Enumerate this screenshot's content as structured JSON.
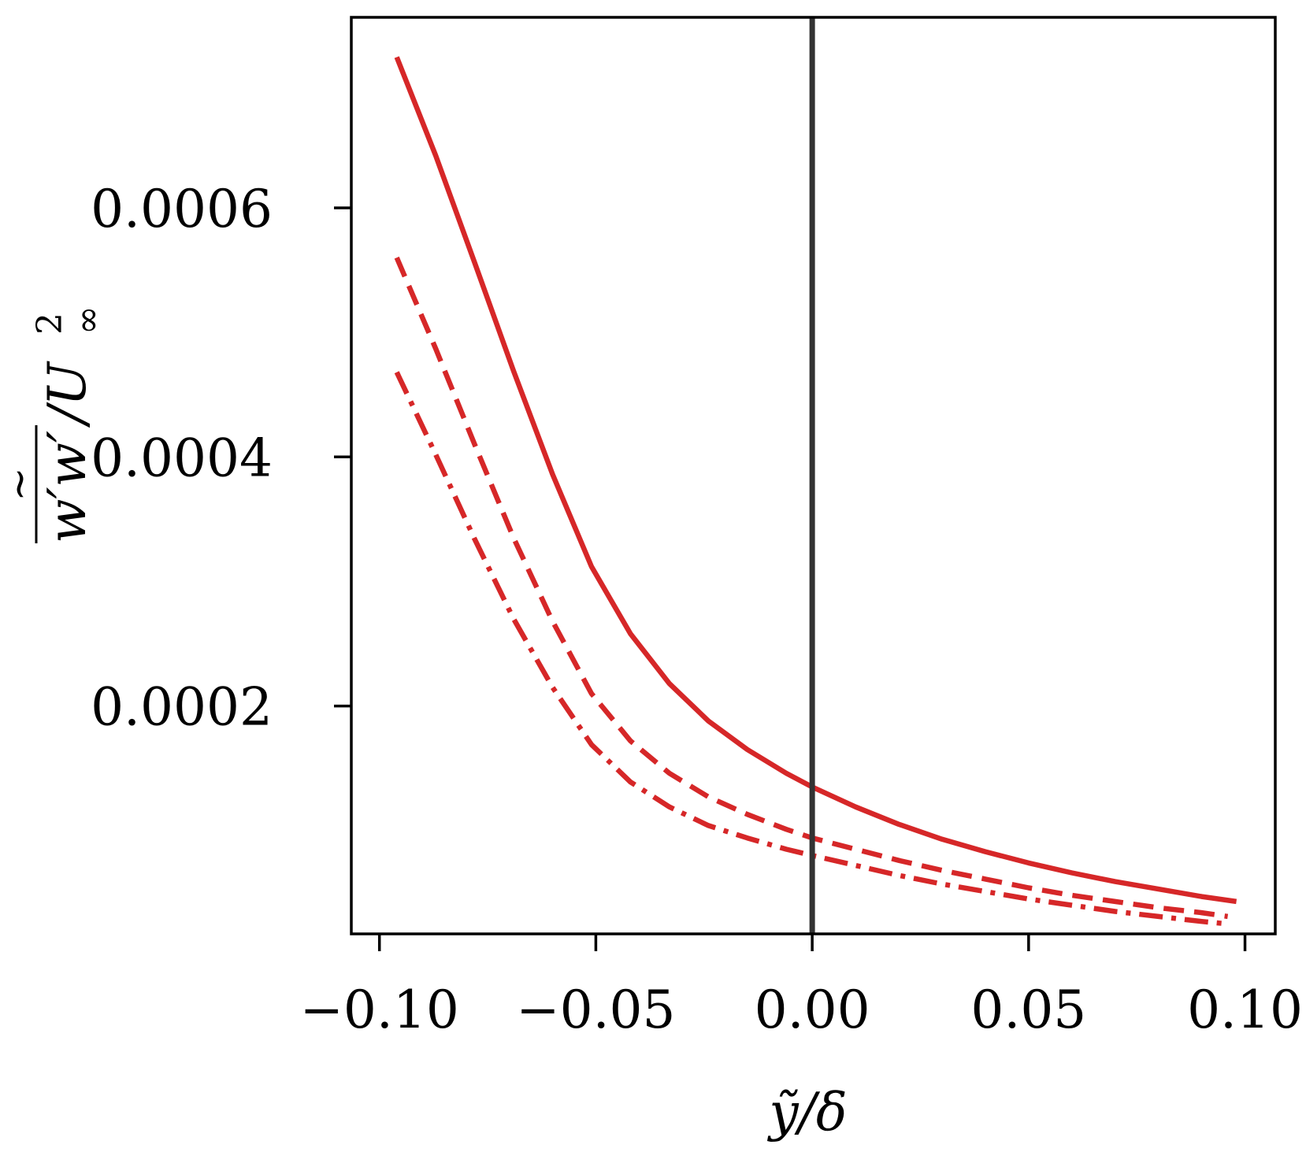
{
  "chart_data": {
    "type": "line",
    "title": "",
    "xlabel": "ỹ/δ",
    "ylabel": "w′w′/U∞²",
    "ylabel_parts": {
      "numerator": "w′w′",
      "slash": "/U",
      "superscript": "2",
      "subscript": "∞"
    },
    "xlim": [
      -0.1065,
      0.107
    ],
    "ylim": [
      1.7e-05,
      0.000753
    ],
    "xticks": [
      {
        "value": -0.1,
        "label": "−0.10"
      },
      {
        "value": -0.05,
        "label": "−0.05"
      },
      {
        "value": 0.0,
        "label": "0.00"
      },
      {
        "value": 0.05,
        "label": "0.05"
      },
      {
        "value": 0.1,
        "label": "0.10"
      }
    ],
    "yticks": [
      {
        "value": 0.0002,
        "label": "0.0002"
      },
      {
        "value": 0.0004,
        "label": "0.0004"
      },
      {
        "value": 0.0006,
        "label": "0.0006"
      }
    ],
    "grid": false,
    "vline": {
      "x": 0.0,
      "color": "#333333"
    },
    "series": [
      {
        "style": "solid",
        "color": "#d62728",
        "x": [
          -0.096,
          -0.087,
          -0.078,
          -0.069,
          -0.06,
          -0.051,
          -0.042,
          -0.033,
          -0.024,
          -0.015,
          -0.006,
          0.0,
          0.01,
          0.02,
          0.03,
          0.04,
          0.05,
          0.06,
          0.07,
          0.08,
          0.09,
          0.098
        ],
        "y": [
          0.000721,
          0.000642,
          0.000556,
          0.000469,
          0.000386,
          0.000312,
          0.000258,
          0.000218,
          0.000188,
          0.000165,
          0.000146,
          0.000135,
          0.000119,
          0.000105,
          9.3e-05,
          8.3e-05,
          7.4e-05,
          6.6e-05,
          5.9e-05,
          5.3e-05,
          4.7e-05,
          4.3e-05
        ]
      },
      {
        "style": "dashed",
        "color": "#d62728",
        "x": [
          -0.096,
          -0.087,
          -0.078,
          -0.069,
          -0.06,
          -0.051,
          -0.042,
          -0.033,
          -0.024,
          -0.015,
          -0.006,
          0.0,
          0.01,
          0.02,
          0.03,
          0.04,
          0.05,
          0.06,
          0.07,
          0.08,
          0.09,
          0.096
        ],
        "y": [
          0.00056,
          0.000487,
          0.00041,
          0.000335,
          0.000268,
          0.00021,
          0.000172,
          0.000146,
          0.000127,
          0.000113,
          0.000101,
          9.4e-05,
          8.5e-05,
          7.6e-05,
          6.8e-05,
          6.1e-05,
          5.4e-05,
          4.8e-05,
          4.3e-05,
          3.8e-05,
          3.4e-05,
          3.1e-05
        ]
      },
      {
        "style": "dashdot",
        "color": "#d62728",
        "x": [
          -0.096,
          -0.087,
          -0.078,
          -0.069,
          -0.06,
          -0.051,
          -0.042,
          -0.033,
          -0.024,
          -0.015,
          -0.006,
          0.0,
          0.01,
          0.02,
          0.03,
          0.04,
          0.05,
          0.06,
          0.07,
          0.08,
          0.09,
          0.096
        ],
        "y": [
          0.000468,
          0.000402,
          0.000334,
          0.00027,
          0.000215,
          0.000169,
          0.000139,
          0.000119,
          0.000104,
          9.4e-05,
          8.5e-05,
          8e-05,
          7.2e-05,
          6.4e-05,
          5.7e-05,
          5.1e-05,
          4.5e-05,
          4e-05,
          3.5e-05,
          3.1e-05,
          2.7e-05,
          2.5e-05
        ]
      }
    ]
  }
}
